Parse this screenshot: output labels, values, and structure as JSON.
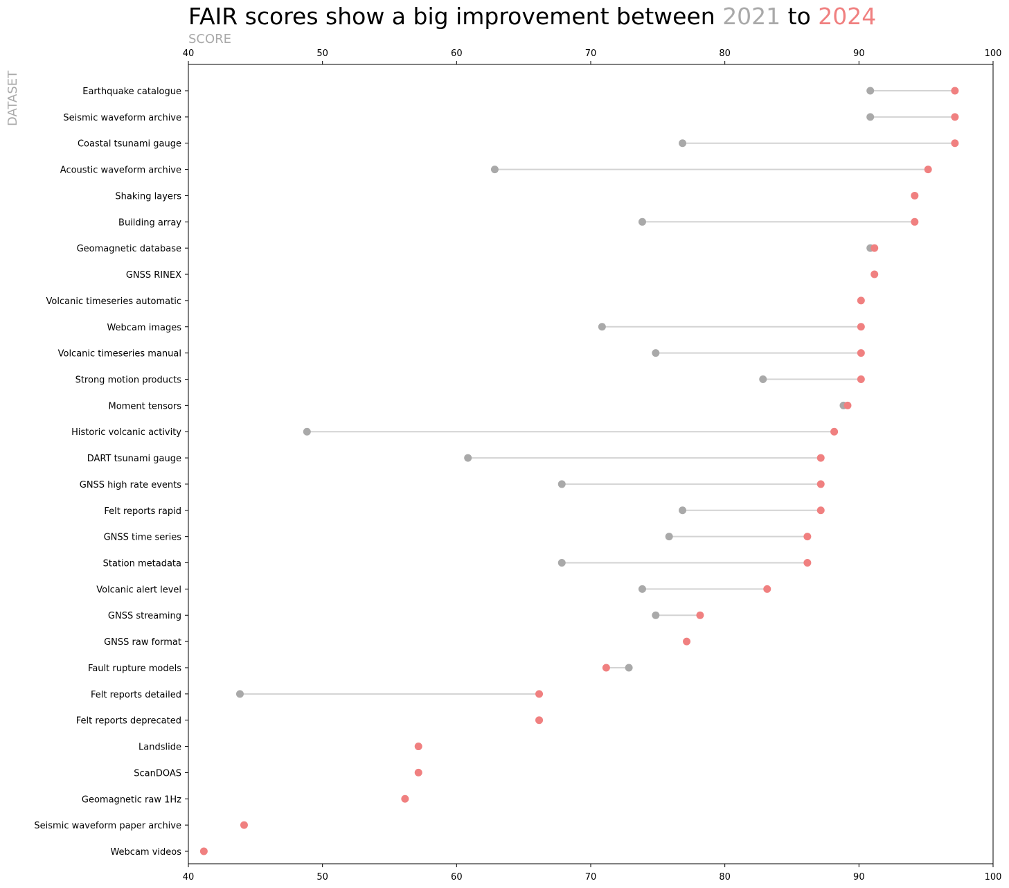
{
  "chart_data": {
    "type": "dumbbell",
    "title": {
      "prefix": "FAIR scores show a big improvement between ",
      "year_a": "2021",
      "middle": " to ",
      "year_b": "2024"
    },
    "xlabel": "SCORE",
    "ylabel": "DATASET",
    "xlim": [
      40,
      100
    ],
    "xticks": [
      40,
      50,
      60,
      70,
      80,
      90,
      100
    ],
    "grid": false,
    "colors": {
      "2021": "#a9a9a9",
      "2024": "#f08080",
      "connector": "#d3d3d3"
    },
    "categories": [
      "Earthquake catalogue",
      "Seismic waveform archive",
      "Coastal tsunami gauge",
      "Acoustic waveform archive",
      "Shaking layers",
      "Building array",
      "Geomagnetic database",
      "GNSS RINEX",
      "Volcanic timeseries automatic",
      "Webcam images",
      "Volcanic timeseries manual",
      "Strong motion products",
      "Moment tensors",
      "Historic volcanic activity",
      "DART tsunami gauge",
      "GNSS high rate events",
      "Felt reports rapid",
      "GNSS time series",
      "Station metadata",
      "Volcanic alert level",
      "GNSS streaming",
      "GNSS raw format",
      "Fault rupture models",
      "Felt reports detailed",
      "Felt reports deprecated",
      "Landslide",
      "ScanDOAS",
      "Geomagnetic raw 1Hz",
      "Seismic waveform paper archive",
      "Webcam videos"
    ],
    "series": [
      {
        "name": "2021",
        "values": [
          91,
          91,
          77,
          63,
          null,
          74,
          91,
          null,
          null,
          71,
          75,
          83,
          89,
          49,
          61,
          68,
          77,
          76,
          68,
          74,
          75,
          null,
          73,
          44,
          null,
          null,
          null,
          null,
          null,
          null
        ]
      },
      {
        "name": "2024",
        "values": [
          97,
          97,
          97,
          95,
          94,
          94,
          91,
          91,
          90,
          90,
          90,
          90,
          89,
          88,
          87,
          87,
          87,
          86,
          86,
          83,
          78,
          77,
          71,
          66,
          66,
          57,
          57,
          56,
          44,
          41
        ]
      }
    ]
  }
}
